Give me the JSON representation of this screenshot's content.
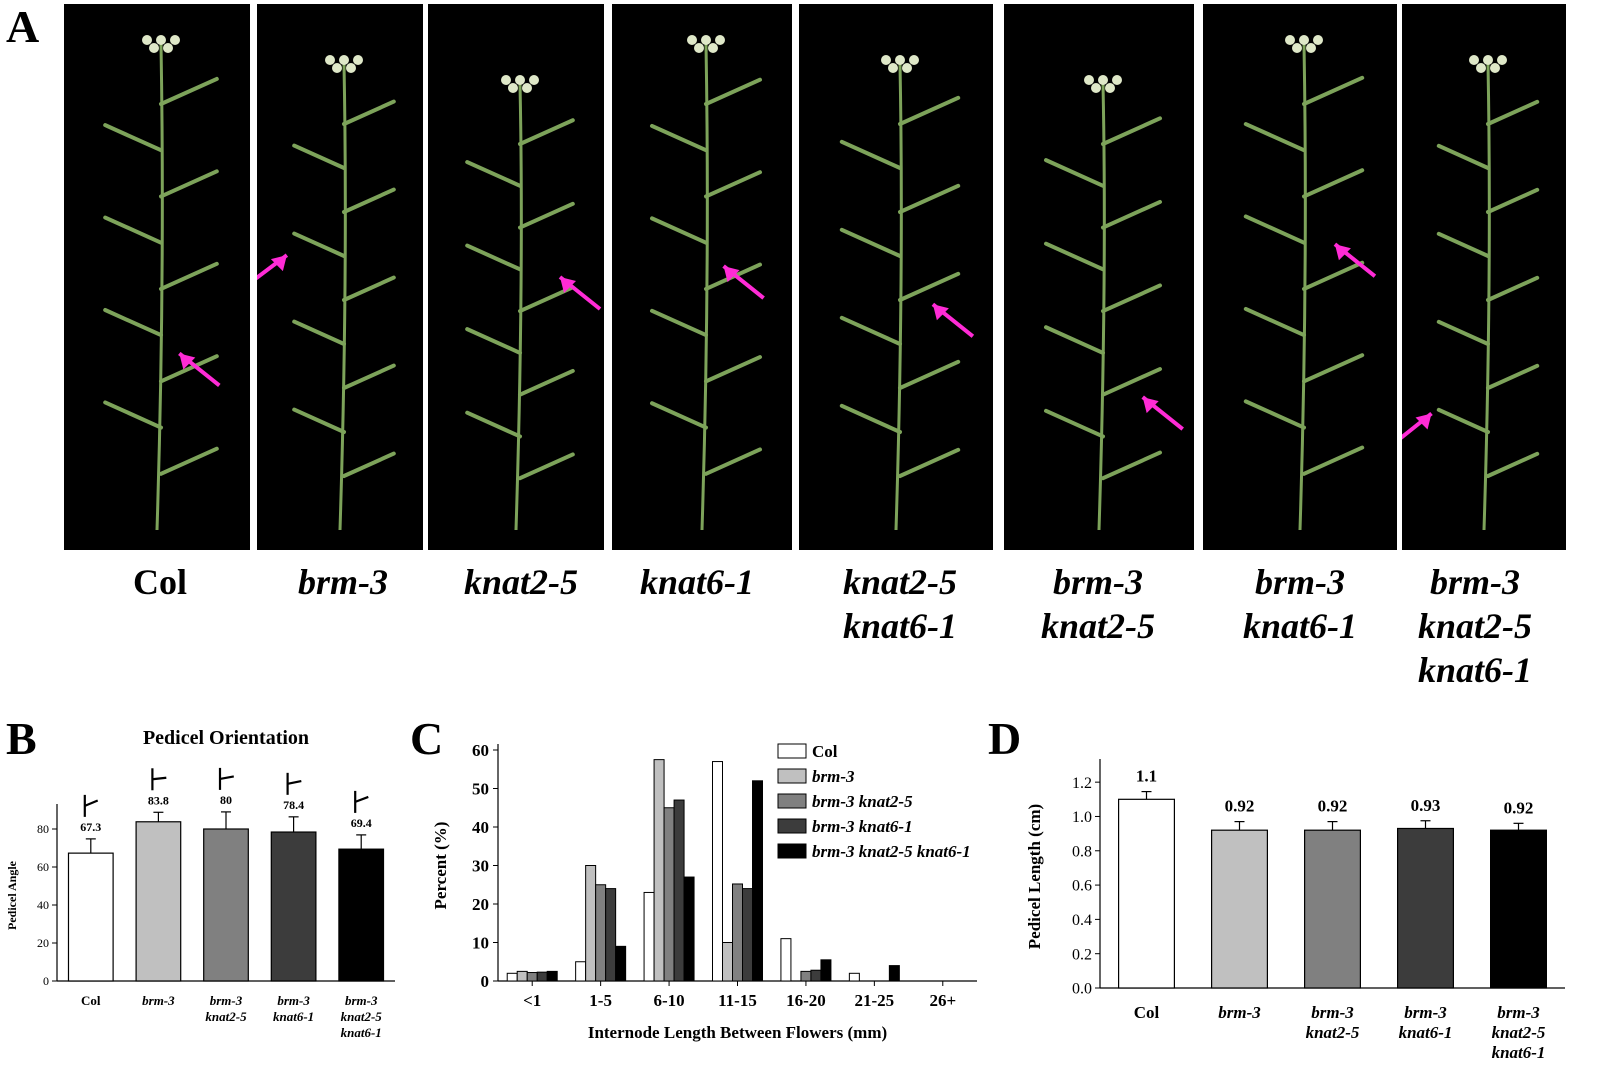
{
  "panel_labels": {
    "a": "A",
    "b": "B",
    "c": "C",
    "d": "D"
  },
  "genotypes": [
    {
      "lines": [
        "Col"
      ],
      "italic": false
    },
    {
      "lines": [
        "brm-3"
      ],
      "italic": true
    },
    {
      "lines": [
        "knat2-5"
      ],
      "italic": true
    },
    {
      "lines": [
        "knat6-1"
      ],
      "italic": true
    },
    {
      "lines": [
        "knat2-5",
        "knat6-1"
      ],
      "italic": true
    },
    {
      "lines": [
        "brm-3",
        "knat2-5"
      ],
      "italic": true
    },
    {
      "lines": [
        "brm-3",
        "knat6-1"
      ],
      "italic": true
    },
    {
      "lines": [
        "brm-3",
        "knat2-5",
        "knat6-1"
      ],
      "italic": true
    }
  ],
  "colors": {
    "arrow": "#ff2bd6",
    "stem": "#7da35a",
    "photo_bg": "#000000"
  },
  "chart_data": [
    {
      "panel": "B",
      "type": "bar",
      "title": "Pedicel Orientation",
      "ylabel": "Pedicel Angle",
      "xlabel": "",
      "ylim": [
        0,
        90
      ],
      "yticks": [
        0,
        20,
        40,
        60,
        80
      ],
      "categories": [
        [
          "Col"
        ],
        [
          "brm-3"
        ],
        [
          "brm-3",
          "knat2-5"
        ],
        [
          "brm-3",
          "knat6-1"
        ],
        [
          "brm-3",
          "knat2-5",
          "knat6-1"
        ]
      ],
      "values": [
        67.3,
        83.8,
        80,
        78.4,
        69.4
      ],
      "errors": [
        7.5,
        5,
        9,
        8,
        7.5
      ],
      "value_labels": [
        "67.3",
        "83.8",
        "80",
        "78.4",
        "69.4"
      ],
      "bar_colors": [
        "#ffffff",
        "#c0c0c0",
        "#808080",
        "#3c3c3c",
        "#000000"
      ]
    },
    {
      "panel": "C",
      "type": "bar",
      "title": "",
      "ylabel": "Percent (%)",
      "xlabel": "Internode Length Between Flowers (mm)",
      "ylim": [
        0,
        60
      ],
      "yticks": [
        0,
        10,
        20,
        30,
        40,
        50,
        60
      ],
      "categories": [
        "<1",
        "1-5",
        "6-10",
        "11-15",
        "16-20",
        "21-25",
        "26+"
      ],
      "legend_position": "top-right",
      "series": [
        {
          "name": "Col",
          "color": "#ffffff",
          "values": [
            2,
            5,
            23,
            57,
            11,
            2,
            0
          ]
        },
        {
          "name": "brm-3",
          "color": "#c0c0c0",
          "values": [
            2.5,
            30,
            57.5,
            10,
            0,
            0,
            0
          ]
        },
        {
          "name": "brm-3 knat2-5",
          "color": "#808080",
          "values": [
            2.2,
            25,
            45,
            25.2,
            2.5,
            0,
            0
          ]
        },
        {
          "name": "brm-3 knat6-1",
          "color": "#3c3c3c",
          "values": [
            2.3,
            24,
            47,
            24,
            2.8,
            0,
            0
          ]
        },
        {
          "name": "brm-3 knat2-5 knat6-1",
          "color": "#000000",
          "values": [
            2.5,
            9,
            27,
            52,
            5.5,
            4,
            0
          ]
        }
      ]
    },
    {
      "panel": "D",
      "type": "bar",
      "title": "",
      "ylabel": "Pedicel Length (cm)",
      "xlabel": "",
      "ylim": [
        0,
        1.3
      ],
      "yticks": [
        "0.0",
        "0.2",
        "0.4",
        "0.6",
        "0.8",
        "1.0",
        "1.2"
      ],
      "categories": [
        [
          "Col"
        ],
        [
          "brm-3"
        ],
        [
          "brm-3",
          "knat2-5"
        ],
        [
          "brm-3",
          "knat6-1"
        ],
        [
          "brm-3",
          "knat2-5",
          "knat6-1"
        ]
      ],
      "values": [
        1.1,
        0.92,
        0.92,
        0.93,
        0.92
      ],
      "errors": [
        0.045,
        0.05,
        0.05,
        0.045,
        0.04
      ],
      "value_labels": [
        "1.1",
        "0.92",
        "0.92",
        "0.93",
        "0.92"
      ],
      "bar_colors": [
        "#ffffff",
        "#c0c0c0",
        "#808080",
        "#3c3c3c",
        "#000000"
      ]
    }
  ]
}
